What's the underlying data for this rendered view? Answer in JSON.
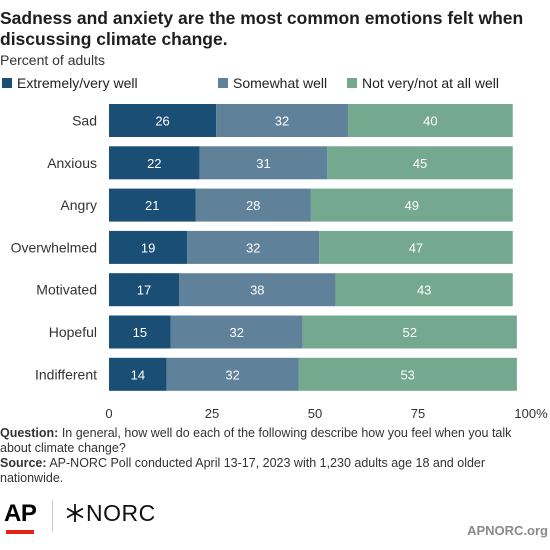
{
  "title": "Sadness and anxiety are the most common emotions felt when discussing climate change.",
  "subtitle": "Percent of adults",
  "colors": {
    "extremely": "#1a4e74",
    "somewhat": "#5f8199",
    "not": "#74a98f",
    "axis_text": "#333333",
    "label_text": "#ffffff"
  },
  "chart_data": {
    "type": "bar",
    "orientation": "horizontal",
    "stacked": true,
    "categories": [
      "Sad",
      "Anxious",
      "Angry",
      "Overwhelmed",
      "Motivated",
      "Hopeful",
      "Indifferent"
    ],
    "series": [
      {
        "name": "Extremely/very well",
        "values": [
          26,
          22,
          21,
          19,
          17,
          15,
          14
        ]
      },
      {
        "name": "Somewhat well",
        "values": [
          32,
          31,
          28,
          32,
          38,
          32,
          32
        ]
      },
      {
        "name": "Not very/not at all well",
        "values": [
          40,
          45,
          49,
          47,
          43,
          52,
          53
        ]
      }
    ],
    "xlim": [
      0,
      100
    ],
    "x_ticks": [
      "0",
      "25",
      "50",
      "75",
      "100%"
    ],
    "legend_position": "top-left",
    "grid": false
  },
  "notes": {
    "question_label": "Question:",
    "question_text": "In general, how well do each of the following describe how you feel when you talk about climate change?",
    "source_label": "Source:",
    "source_text": "AP-NORC Poll conducted April 13-17, 2023 with 1,230 adults age 18 and older nationwide."
  },
  "logos": {
    "ap": "AP",
    "norc": "NORC"
  },
  "site": "APNORC.org"
}
